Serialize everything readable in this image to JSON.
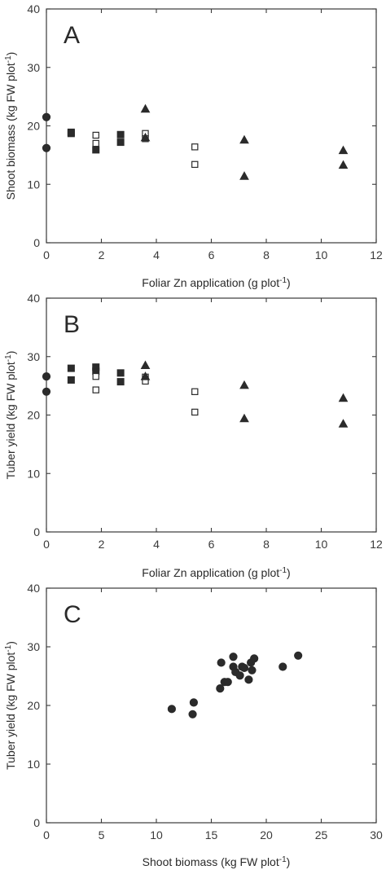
{
  "chart_data": [
    {
      "type": "scatter",
      "panel_label": "A",
      "xlabel": "Foliar Zn application (g plot",
      "xlabel_sup": "-1",
      "xlabel_end": ")",
      "ylabel": "Shoot biomass (kg FW plot",
      "ylabel_sup": "-1",
      "ylabel_end": ")",
      "xlim": [
        0,
        12
      ],
      "ylim": [
        0,
        40
      ],
      "xticks": [
        "0",
        "2",
        "4",
        "6",
        "8",
        "10",
        "12"
      ],
      "yticks": [
        "0",
        "10",
        "20",
        "30",
        "40"
      ],
      "grid": false,
      "series": [
        {
          "marker": "circle-filled",
          "points": [
            [
              0,
              21.5
            ],
            [
              0,
              16.2
            ]
          ]
        },
        {
          "marker": "square-filled",
          "points": [
            [
              0.9,
              18.9
            ],
            [
              0.9,
              18.7
            ],
            [
              1.8,
              15.9
            ],
            [
              2.7,
              18.5
            ],
            [
              2.7,
              17.2
            ]
          ]
        },
        {
          "marker": "square-open",
          "points": [
            [
              1.8,
              18.4
            ],
            [
              1.8,
              17.0
            ],
            [
              3.6,
              18.7
            ],
            [
              3.6,
              17.8
            ],
            [
              5.4,
              16.4
            ],
            [
              5.4,
              13.4
            ]
          ]
        },
        {
          "marker": "triangle-filled",
          "points": [
            [
              3.6,
              22.9
            ],
            [
              3.6,
              18.0
            ],
            [
              7.2,
              17.6
            ],
            [
              7.2,
              11.4
            ],
            [
              10.8,
              15.8
            ],
            [
              10.8,
              13.3
            ]
          ]
        }
      ]
    },
    {
      "type": "scatter",
      "panel_label": "B",
      "xlabel": "Foliar Zn application (g plot",
      "xlabel_sup": "-1",
      "xlabel_end": ")",
      "ylabel": "Tuber yield (kg FW plot",
      "ylabel_sup": "-1",
      "ylabel_end": ")",
      "xlim": [
        0,
        12
      ],
      "ylim": [
        0,
        40
      ],
      "xticks": [
        "0",
        "2",
        "4",
        "6",
        "8",
        "10",
        "12"
      ],
      "yticks": [
        "0",
        "10",
        "20",
        "30",
        "40"
      ],
      "grid": false,
      "series": [
        {
          "marker": "circle-filled",
          "points": [
            [
              0,
              26.6
            ],
            [
              0,
              24.0
            ]
          ]
        },
        {
          "marker": "square-filled",
          "points": [
            [
              0.9,
              28.0
            ],
            [
              0.9,
              26.0
            ],
            [
              1.8,
              28.2
            ],
            [
              1.8,
              27.5
            ],
            [
              2.7,
              27.2
            ],
            [
              2.7,
              25.7
            ]
          ]
        },
        {
          "marker": "square-open",
          "points": [
            [
              1.8,
              26.6
            ],
            [
              1.8,
              24.3
            ],
            [
              3.6,
              26.5
            ],
            [
              3.6,
              25.8
            ],
            [
              5.4,
              24.0
            ],
            [
              5.4,
              20.5
            ]
          ]
        },
        {
          "marker": "triangle-filled",
          "points": [
            [
              3.6,
              28.5
            ],
            [
              3.6,
              26.6
            ],
            [
              7.2,
              25.1
            ],
            [
              7.2,
              19.4
            ],
            [
              10.8,
              22.9
            ],
            [
              10.8,
              18.5
            ]
          ]
        }
      ]
    },
    {
      "type": "scatter",
      "panel_label": "C",
      "xlabel": "Shoot biomass (kg FW plot",
      "xlabel_sup": "-1",
      "xlabel_end": ")",
      "ylabel": "Tuber yield (kg FW plot",
      "ylabel_sup": "-1",
      "ylabel_end": ")",
      "xlim": [
        0,
        30
      ],
      "ylim": [
        0,
        40
      ],
      "xticks": [
        "0",
        "5",
        "10",
        "15",
        "20",
        "25",
        "30"
      ],
      "yticks": [
        "0",
        "10",
        "20",
        "30",
        "40"
      ],
      "grid": false,
      "series": [
        {
          "marker": "circle-filled",
          "points": [
            [
              11.4,
              19.4
            ],
            [
              13.3,
              18.5
            ],
            [
              13.4,
              20.5
            ],
            [
              15.8,
              22.9
            ],
            [
              15.9,
              27.3
            ],
            [
              16.2,
              24.0
            ],
            [
              16.5,
              24.0
            ],
            [
              17.0,
              28.3
            ],
            [
              17.0,
              26.6
            ],
            [
              17.2,
              25.7
            ],
            [
              17.6,
              25.1
            ],
            [
              17.8,
              26.6
            ],
            [
              18.0,
              26.4
            ],
            [
              18.4,
              24.4
            ],
            [
              18.6,
              27.3
            ],
            [
              18.7,
              26.0
            ],
            [
              18.9,
              28.0
            ],
            [
              21.5,
              26.6
            ],
            [
              22.9,
              28.5
            ]
          ]
        }
      ]
    }
  ]
}
